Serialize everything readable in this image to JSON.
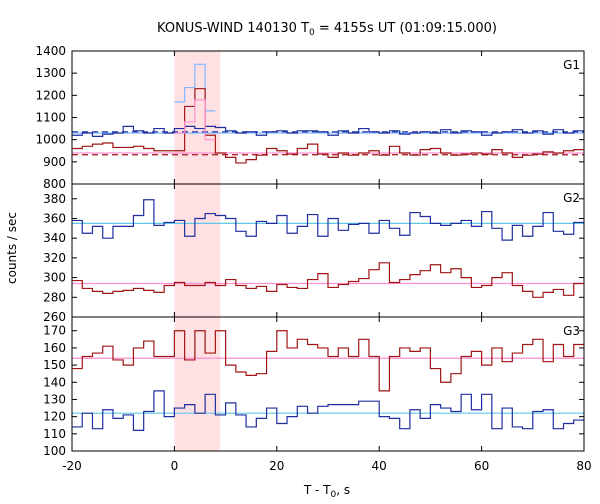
{
  "title_main": "KONUS-WIND 140130 T",
  "title_sub": "0",
  "title_tail": " = 4155s UT (01:09:15.000)",
  "xlabel_main": "T - T",
  "xlabel_sub": "0",
  "xlabel_tail": ", s",
  "ylabel": "counts / sec",
  "chart_data": [
    {
      "type": "line",
      "panel": "G1",
      "x_edges": [
        -20,
        -18,
        -16,
        -14,
        -12,
        -10,
        -8,
        -6,
        -4,
        -2,
        0,
        2,
        4,
        6,
        8,
        10,
        12,
        14,
        16,
        18,
        20,
        22,
        24,
        26,
        28,
        30,
        32,
        34,
        36,
        38,
        40,
        42,
        44,
        46,
        48,
        50,
        52,
        54,
        56,
        58,
        60,
        62,
        64,
        66,
        68,
        70,
        72,
        74,
        76,
        78,
        80
      ],
      "series": [
        {
          "color": "#1f2fa0",
          "values": [
            1020,
            1030,
            1015,
            1025,
            1030,
            1060,
            1040,
            1030,
            1050,
            1030,
            1050,
            1060,
            1050,
            1060,
            1055,
            1040,
            1030,
            1035,
            1020,
            1035,
            1040,
            1030,
            1040,
            1040,
            1035,
            1020,
            1040,
            1030,
            1050,
            1035,
            1030,
            1040,
            1025,
            1030,
            1035,
            1030,
            1045,
            1030,
            1040,
            1035,
            1020,
            1030,
            1035,
            1045,
            1030,
            1040,
            1025,
            1045,
            1030,
            1040
          ]
        },
        {
          "color": "#7fb8ff",
          "values": [
            null,
            null,
            null,
            null,
            null,
            null,
            null,
            null,
            null,
            null,
            1170,
            1235,
            1340,
            1130,
            null,
            null,
            null,
            null,
            null,
            null,
            null,
            null,
            null,
            null,
            null,
            null,
            null,
            null,
            null,
            null,
            null,
            null,
            null,
            null,
            null,
            null,
            null,
            null,
            null,
            null,
            null,
            null,
            null,
            null,
            null,
            null,
            null,
            null,
            null,
            null
          ]
        },
        {
          "color": "#a01515",
          "values": [
            960,
            970,
            980,
            985,
            965,
            965,
            970,
            960,
            950,
            950,
            950,
            1150,
            1230,
            1020,
            940,
            920,
            895,
            910,
            930,
            960,
            950,
            935,
            960,
            980,
            935,
            920,
            940,
            930,
            940,
            950,
            930,
            970,
            940,
            930,
            955,
            960,
            940,
            930,
            935,
            940,
            935,
            955,
            940,
            920,
            930,
            935,
            945,
            940,
            950,
            955
          ]
        },
        {
          "color": "#ff8fd0",
          "values": [
            null,
            null,
            null,
            null,
            null,
            null,
            null,
            null,
            null,
            null,
            1030,
            1080,
            1180,
            1000,
            null,
            null,
            null,
            null,
            null,
            null,
            null,
            null,
            null,
            null,
            null,
            null,
            null,
            null,
            null,
            null,
            null,
            null,
            null,
            null,
            null,
            null,
            null,
            null,
            null,
            null,
            null,
            null,
            null,
            null,
            null,
            null,
            null,
            null,
            null,
            null
          ]
        }
      ],
      "background_levels": [
        {
          "color": "#1f2fa0",
          "dash": true,
          "value": 1035
        },
        {
          "color": "#7fb8ff",
          "dash": false,
          "value": 1030
        },
        {
          "color": "#a01515",
          "dash": true,
          "value": 932
        },
        {
          "color": "#ff8fd0",
          "dash": false,
          "value": 940
        }
      ],
      "ylim": [
        800,
        1400
      ],
      "yticks": [
        800,
        900,
        1000,
        1100,
        1200,
        1300,
        1400
      ],
      "ytick_labels": [
        "800",
        "900",
        "1000",
        "1100",
        "1200",
        "1300",
        "1400"
      ],
      "label": "G1"
    },
    {
      "type": "line",
      "panel": "G2",
      "x_edges": [
        -20,
        -18,
        -16,
        -14,
        -12,
        -10,
        -8,
        -6,
        -4,
        -2,
        0,
        2,
        4,
        6,
        8,
        10,
        12,
        14,
        16,
        18,
        20,
        22,
        24,
        26,
        28,
        30,
        32,
        34,
        36,
        38,
        40,
        42,
        44,
        46,
        48,
        50,
        52,
        54,
        56,
        58,
        60,
        62,
        64,
        66,
        68,
        70,
        72,
        74,
        76,
        78,
        80
      ],
      "series": [
        {
          "color": "#1f2fa0",
          "values": [
            358,
            345,
            352,
            340,
            352,
            352,
            363,
            379,
            353,
            356,
            358,
            342,
            360,
            365,
            363,
            360,
            347,
            342,
            357,
            355,
            363,
            345,
            352,
            364,
            342,
            360,
            348,
            354,
            355,
            345,
            358,
            350,
            343,
            366,
            362,
            355,
            353,
            355,
            358,
            352,
            367,
            350,
            338,
            353,
            342,
            352,
            366,
            347,
            344,
            356
          ]
        },
        {
          "color": "#a01515",
          "values": [
            297,
            289,
            286,
            284,
            286,
            287,
            289,
            287,
            285,
            292,
            295,
            292,
            292,
            295,
            292,
            298,
            292,
            289,
            291,
            286,
            293,
            290,
            289,
            298,
            304,
            290,
            293,
            296,
            299,
            308,
            315,
            295,
            298,
            303,
            307,
            313,
            305,
            309,
            300,
            290,
            292,
            300,
            305,
            292,
            286,
            280,
            285,
            288,
            282,
            294
          ]
        }
      ],
      "background_levels": [
        {
          "color": "#5fc8e8",
          "dash": false,
          "value": 355
        },
        {
          "color": "#ff8fd0",
          "dash": false,
          "value": 294
        }
      ],
      "ylim": [
        260,
        395
      ],
      "yticks": [
        260,
        280,
        300,
        320,
        340,
        360,
        380
      ],
      "ytick_labels": [
        "260",
        "280",
        "300",
        "320",
        "340",
        "360",
        "380"
      ],
      "label": "G2"
    },
    {
      "type": "line",
      "panel": "G3",
      "x_edges": [
        -20,
        -18,
        -16,
        -14,
        -12,
        -10,
        -8,
        -6,
        -4,
        -2,
        0,
        2,
        4,
        6,
        8,
        10,
        12,
        14,
        16,
        18,
        20,
        22,
        24,
        26,
        28,
        30,
        32,
        34,
        36,
        38,
        40,
        42,
        44,
        46,
        48,
        50,
        52,
        54,
        56,
        58,
        60,
        62,
        64,
        66,
        68,
        70,
        72,
        74,
        76,
        78,
        80
      ],
      "series": [
        {
          "color": "#1f2fa0",
          "values": [
            114,
            122,
            113,
            124,
            119,
            121,
            112,
            123,
            135,
            120,
            125,
            127,
            122,
            133,
            121,
            128,
            121,
            114,
            119,
            125,
            116,
            120,
            126,
            122,
            126,
            127,
            127,
            127,
            129,
            129,
            120,
            119,
            113,
            124,
            119,
            127,
            125,
            123,
            133,
            124,
            133,
            113,
            125,
            114,
            113,
            123,
            124,
            113,
            116,
            118
          ]
        },
        {
          "color": "#a01515",
          "values": [
            148,
            155,
            157,
            161,
            153,
            150,
            160,
            164,
            155,
            155,
            170,
            153,
            170,
            157,
            170,
            150,
            146,
            144,
            145,
            158,
            170,
            160,
            165,
            162,
            160,
            155,
            160,
            155,
            165,
            155,
            135,
            155,
            160,
            158,
            160,
            148,
            140,
            145,
            155,
            158,
            150,
            160,
            152,
            157,
            162,
            165,
            152,
            162,
            155,
            162
          ]
        }
      ],
      "background_levels": [
        {
          "color": "#5fc8e8",
          "dash": false,
          "value": 122
        },
        {
          "color": "#ff8fd0",
          "dash": false,
          "value": 154
        }
      ],
      "ylim": [
        100,
        178
      ],
      "yticks": [
        100,
        110,
        120,
        130,
        140,
        150,
        160,
        170
      ],
      "ytick_labels": [
        "100",
        "110",
        "120",
        "130",
        "140",
        "150",
        "160",
        "170"
      ],
      "label": "G3"
    }
  ],
  "xlim": [
    -20,
    80
  ],
  "xticks": [
    -20,
    0,
    20,
    40,
    60,
    80
  ],
  "xtick_labels": [
    "-20",
    "0",
    "20",
    "40",
    "60",
    "80"
  ],
  "highlight_interval": [
    0,
    9
  ],
  "highlight_color": "#ffe0e3"
}
